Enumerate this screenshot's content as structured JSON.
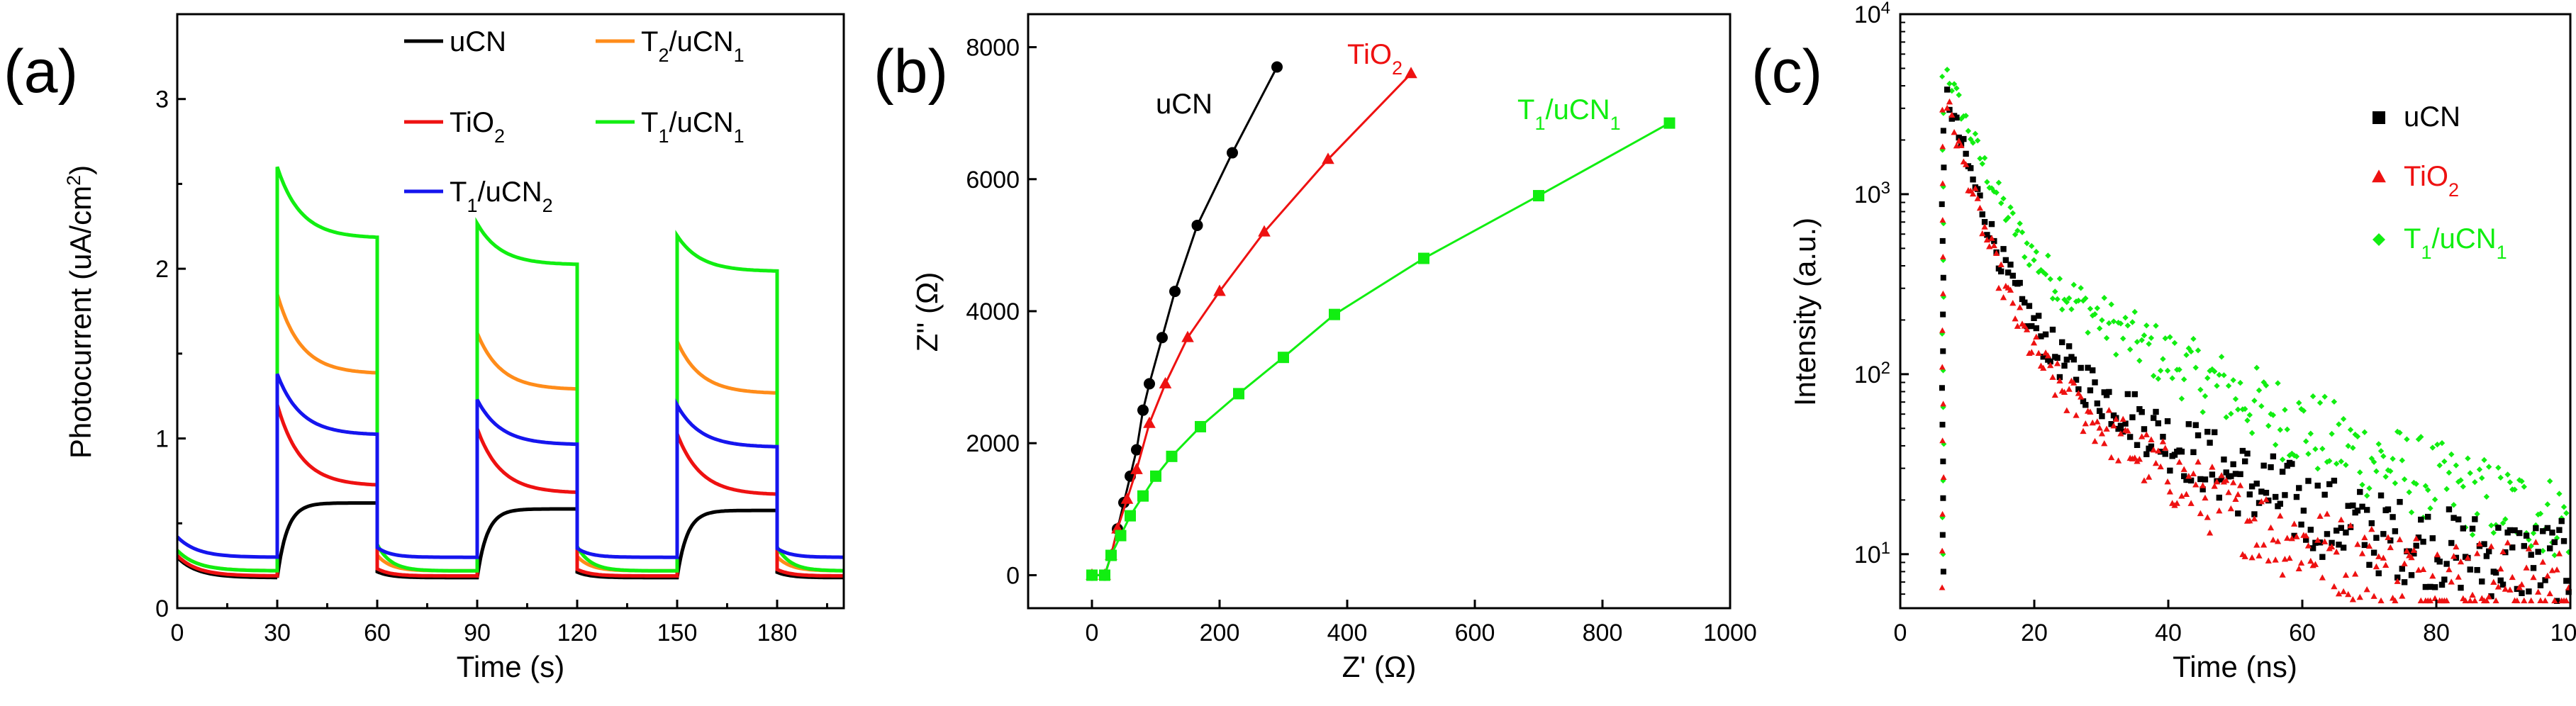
{
  "chart_data": [
    {
      "panel": "(a)",
      "type": "line",
      "xlabel": "Time (s)",
      "ylabel": "Photocurrent (uA/cm2)",
      "xlim": [
        0,
        200
      ],
      "ylim": [
        0,
        3.5
      ],
      "xticks": [
        0,
        30,
        60,
        90,
        120,
        150,
        180
      ],
      "yticks": [
        0,
        1,
        2,
        3
      ],
      "light_on_intervals": [
        [
          30,
          60
        ],
        [
          90,
          120
        ],
        [
          150,
          180
        ]
      ],
      "series": [
        {
          "name": "uCN",
          "label": {
            "main": "uCN"
          },
          "color": "#000000",
          "dark": 0.18,
          "peak": 0.6,
          "steady": 0.62
        },
        {
          "name": "T2/uCN1",
          "label": {
            "main": "T",
            "sub1": "2",
            "mid": "/uCN",
            "sub2": "1"
          },
          "color": "#ff8c1a",
          "dark": 0.22,
          "peak": 1.85,
          "steady": 1.38
        },
        {
          "name": "TiO2",
          "label": {
            "main": "TiO",
            "sub1": "2"
          },
          "color": "#ee1111",
          "dark": 0.19,
          "peak": 1.2,
          "steady": 0.72
        },
        {
          "name": "T1/uCN1",
          "label": {
            "main": "T",
            "sub1": "1",
            "mid": "/uCN",
            "sub2": "1"
          },
          "color": "#11ee11",
          "dark": 0.22,
          "peak": 2.6,
          "steady": 2.18
        },
        {
          "name": "T1/uCN2",
          "label": {
            "main": "T",
            "sub1": "1",
            "mid": "/uCN",
            "sub2": "2"
          },
          "color": "#1515ee",
          "dark": 0.3,
          "peak": 1.38,
          "steady": 1.02
        }
      ]
    },
    {
      "panel": "(b)",
      "type": "line",
      "xlabel": "Z' (Ω)",
      "ylabel": "Z'' (Ω)",
      "xlim": [
        -100,
        1000
      ],
      "ylim": [
        -500,
        8500
      ],
      "xticks": [
        0,
        200,
        400,
        600,
        800,
        1000
      ],
      "yticks": [
        0,
        2000,
        4000,
        6000,
        8000
      ],
      "series": [
        {
          "name": "uCN",
          "label": {
            "main": "uCN"
          },
          "color": "#000000",
          "marker": "circle",
          "x": [
            0,
            20,
            30,
            40,
            50,
            60,
            70,
            80,
            90,
            110,
            130,
            165,
            220,
            290
          ],
          "y": [
            0,
            0,
            300,
            700,
            1100,
            1500,
            1900,
            2500,
            2900,
            3600,
            4300,
            5300,
            6400,
            7700
          ]
        },
        {
          "name": "TiO2",
          "label": {
            "main": "TiO",
            "sub1": "2"
          },
          "color": "#ee1111",
          "marker": "triangle",
          "x": [
            0,
            20,
            30,
            40,
            55,
            70,
            90,
            115,
            150,
            200,
            270,
            370,
            500
          ],
          "y": [
            0,
            0,
            300,
            700,
            1150,
            1600,
            2300,
            2900,
            3600,
            4300,
            5200,
            6300,
            7600
          ]
        },
        {
          "name": "T1/uCN1",
          "label": {
            "main": "T",
            "sub1": "1",
            "mid": "/uCN",
            "sub2": "1"
          },
          "color": "#11ee11",
          "marker": "square",
          "x": [
            0,
            20,
            30,
            45,
            60,
            80,
            100,
            125,
            170,
            230,
            300,
            380,
            520,
            700,
            905
          ],
          "y": [
            0,
            0,
            300,
            600,
            900,
            1200,
            1500,
            1800,
            2250,
            2750,
            3300,
            3950,
            4800,
            5750,
            6850
          ]
        }
      ]
    },
    {
      "panel": "(c)",
      "type": "scatter",
      "xlabel": "Time (ns)",
      "ylabel": "Intensity (a.u.)",
      "xlim": [
        0,
        100
      ],
      "ylim_log10": [
        0.7,
        4
      ],
      "xticks": [
        0,
        20,
        40,
        60,
        80,
        100
      ],
      "yticks": [
        "10^1",
        "10^2",
        "10^3",
        "10^4"
      ],
      "series": [
        {
          "name": "uCN",
          "label": {
            "main": "uCN"
          },
          "color": "#000000",
          "marker": "square",
          "peak": 3500,
          "t_peak": 7,
          "tau1": 3.2,
          "a1": 0.92,
          "tau2": 16,
          "floor": 8
        },
        {
          "name": "TiO2",
          "label": {
            "main": "TiO",
            "sub1": "2"
          },
          "color": "#ee1111",
          "marker": "triangle",
          "peak": 3200,
          "t_peak": 7,
          "tau1": 3.0,
          "a1": 0.93,
          "tau2": 14,
          "floor": 6.5
        },
        {
          "name": "T1/uCN1",
          "label": {
            "main": "T",
            "sub1": "1",
            "mid": "/uCN",
            "sub2": "1"
          },
          "color": "#11ee11",
          "marker": "diamond",
          "peak": 4800,
          "t_peak": 7,
          "tau1": 3.8,
          "a1": 0.88,
          "tau2": 20,
          "floor": 10
        }
      ]
    }
  ]
}
